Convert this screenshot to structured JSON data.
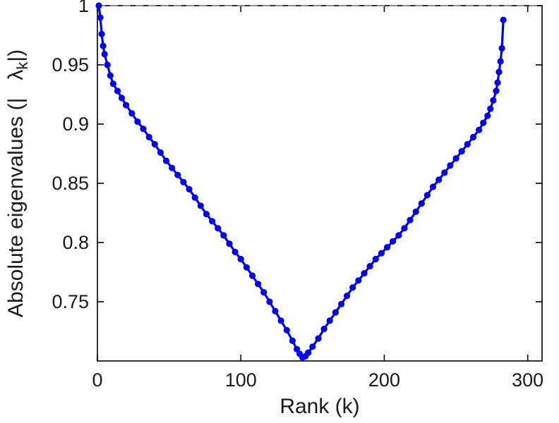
{
  "chart_data": {
    "type": "line",
    "title": "",
    "xlabel": "Rank (k)",
    "ylabel": {
      "full": "Absolute eigenvalues (|λk|)",
      "prefix": "Absolute eigenvalues (|",
      "spacing": "   ",
      "symbol": "λ",
      "subscript": "k",
      "suffix": "|)"
    },
    "xlim": [
      0,
      310
    ],
    "ylim": [
      0.7,
      1.0
    ],
    "xticks": [
      0,
      100,
      200,
      300
    ],
    "xtick_labels": [
      "0",
      "100",
      "200",
      "300"
    ],
    "yticks": [
      0.75,
      0.8,
      0.85,
      0.9,
      0.95,
      1
    ],
    "ytick_labels": [
      "0.75",
      "0.8",
      "0.85",
      "0.9",
      "0.95",
      "1"
    ],
    "grid": false,
    "legend": null,
    "axis_color": "#000000",
    "text_color": "#1a1a1a",
    "reference_line": {
      "y": 1.0,
      "style": "dashed",
      "color": "#8c8c8c"
    },
    "series": [
      {
        "name": "absolute eigenvalues vs rank",
        "color": "#0000EE",
        "marker": "circle",
        "x": [
          1,
          2,
          3,
          4,
          5,
          7,
          9,
          11,
          14,
          17,
          20,
          24,
          28,
          32,
          36,
          40,
          44,
          48,
          52,
          56,
          60,
          64,
          68,
          72,
          76,
          80,
          84,
          88,
          92,
          96,
          100,
          104,
          108,
          112,
          116,
          120,
          124,
          128,
          132,
          136,
          139,
          141,
          143,
          145,
          147,
          150,
          154,
          158,
          162,
          166,
          170,
          174,
          178,
          182,
          186,
          190,
          194,
          198,
          202,
          206,
          210,
          214,
          218,
          222,
          226,
          230,
          234,
          238,
          242,
          246,
          250,
          254,
          258,
          262,
          266,
          269,
          272,
          274,
          276,
          278,
          279,
          280,
          281,
          282,
          283
        ],
        "y": [
          1.0,
          0.99,
          0.976,
          0.966,
          0.959,
          0.95,
          0.941,
          0.934,
          0.928,
          0.922,
          0.916,
          0.909,
          0.902,
          0.896,
          0.889,
          0.883,
          0.876,
          0.869,
          0.863,
          0.857,
          0.851,
          0.845,
          0.838,
          0.831,
          0.824,
          0.818,
          0.812,
          0.806,
          0.799,
          0.792,
          0.786,
          0.779,
          0.772,
          0.765,
          0.758,
          0.75,
          0.742,
          0.734,
          0.726,
          0.717,
          0.71,
          0.706,
          0.703,
          0.704,
          0.707,
          0.712,
          0.719,
          0.727,
          0.734,
          0.741,
          0.748,
          0.755,
          0.762,
          0.768,
          0.774,
          0.78,
          0.786,
          0.791,
          0.796,
          0.801,
          0.806,
          0.812,
          0.819,
          0.826,
          0.833,
          0.84,
          0.847,
          0.853,
          0.859,
          0.865,
          0.871,
          0.877,
          0.883,
          0.889,
          0.895,
          0.901,
          0.907,
          0.913,
          0.92,
          0.928,
          0.935,
          0.944,
          0.953,
          0.964,
          0.988
        ]
      }
    ]
  }
}
